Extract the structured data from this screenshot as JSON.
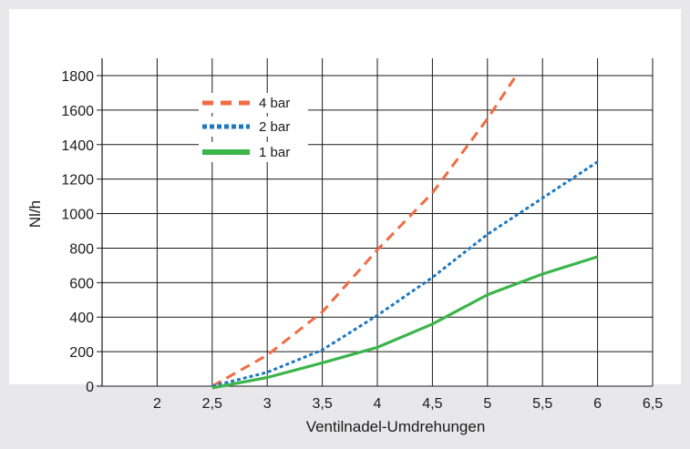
{
  "chart_data": {
    "type": "line",
    "title": "",
    "xlabel": "Ventilnadel-Umdrehungen",
    "ylabel": "Nl/h",
    "xlim": [
      1.5,
      6.5
    ],
    "ylim": [
      0,
      1800
    ],
    "grid": true,
    "legend_position": "top-left",
    "x_ticks": [
      2,
      2.5,
      3,
      3.5,
      4,
      4.5,
      5,
      5.5,
      6,
      6.5
    ],
    "x_tick_labels": [
      "2",
      "2,5",
      "3",
      "3,5",
      "4",
      "4,5",
      "5",
      "5,5",
      "6",
      "6,5"
    ],
    "y_ticks": [
      0,
      200,
      400,
      600,
      800,
      1000,
      1200,
      1400,
      1600,
      1800
    ],
    "y_tick_labels": [
      "0",
      "200",
      "400",
      "600",
      "800",
      "1000",
      "1200",
      "1400",
      "1600",
      "1800"
    ],
    "series": [
      {
        "name": "4 bar",
        "color": "#f26b43",
        "style": "dashed",
        "x": [
          2.5,
          3,
          3.5,
          4,
          4.5,
          5,
          5.25
        ],
        "y": [
          0,
          180,
          430,
          790,
          1120,
          1550,
          1790
        ]
      },
      {
        "name": "2 bar",
        "color": "#1f78c1",
        "style": "dotted",
        "x": [
          2.5,
          3,
          3.5,
          4,
          4.5,
          5,
          5.5,
          6
        ],
        "y": [
          0,
          80,
          210,
          410,
          630,
          880,
          1090,
          1300
        ]
      },
      {
        "name": "1 bar",
        "color": "#3cb54a",
        "style": "solid",
        "x": [
          2.5,
          3,
          3.5,
          4,
          4.5,
          5,
          5.5,
          6
        ],
        "y": [
          -10,
          50,
          135,
          225,
          360,
          530,
          650,
          750
        ]
      }
    ]
  }
}
